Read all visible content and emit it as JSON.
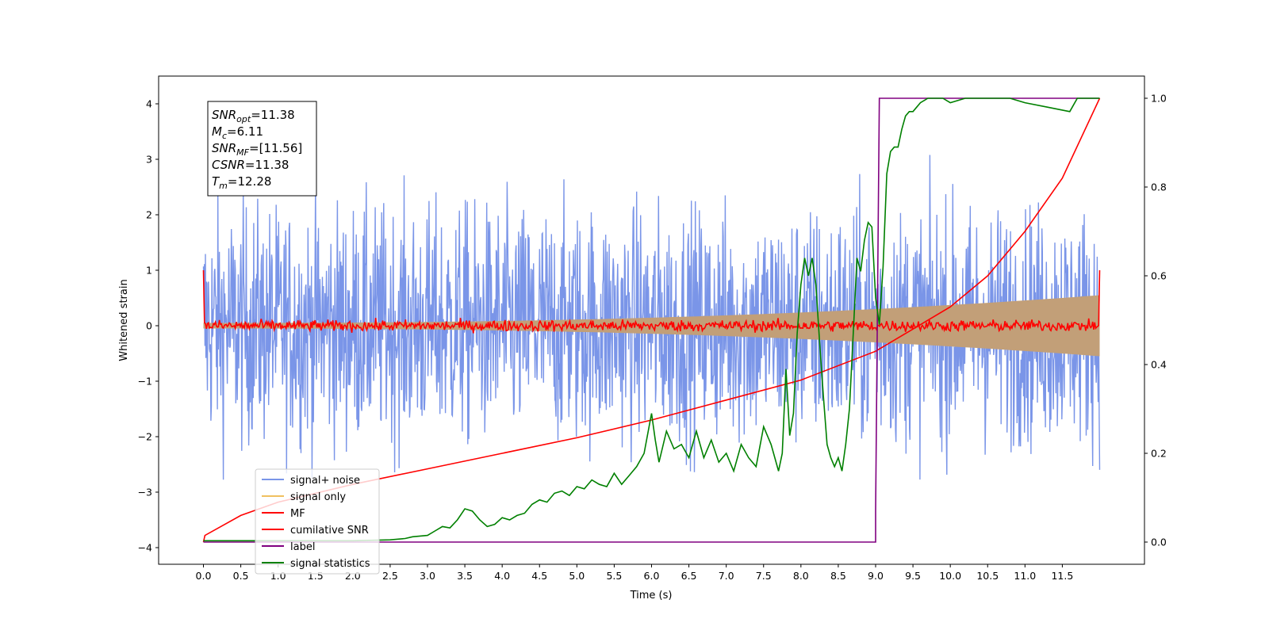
{
  "chart_data": {
    "type": "line",
    "title": "",
    "xlabel": "Time (s)",
    "ylabel": "Whitened strain",
    "xlim": [
      -0.6,
      12.6
    ],
    "ylim": [
      -4.3,
      4.5
    ],
    "y2lim": [
      -0.05,
      1.05
    ],
    "x_ticks": [
      "0.0",
      "0.5",
      "1.0",
      "1.5",
      "2.0",
      "2.5",
      "3.0",
      "3.5",
      "4.0",
      "4.5",
      "5.0",
      "5.5",
      "6.0",
      "6.5",
      "7.0",
      "7.5",
      "8.0",
      "8.5",
      "9.0",
      "9.5",
      "10.0",
      "10.5",
      "11.0",
      "11.5"
    ],
    "y_ticks": [
      "4",
      "3",
      "2",
      "1",
      "0",
      "−1",
      "−2",
      "−3",
      "−4"
    ],
    "y2_ticks": [
      "1.0",
      "0.8",
      "0.6",
      "0.4",
      "0.2",
      "0.0"
    ],
    "grid": false,
    "legend_position": "lower-left",
    "annotation": [
      {
        "main": "SNR",
        "sub": "opt",
        "value": "=11.38"
      },
      {
        "main": "M",
        "sub": "c",
        "value": "=6.11"
      },
      {
        "main": "SNR",
        "sub": "MF",
        "value": "=[11.56]"
      },
      {
        "main": "CSNR",
        "sub": "",
        "value": "=11.38"
      },
      {
        "main": "T",
        "sub": "m",
        "value": "=12.28"
      }
    ],
    "series": [
      {
        "name": "signal+ noise",
        "color": "#7a95e8",
        "axis": "left",
        "x_range": [
          0.0,
          12.0
        ],
        "y_range_approx": [
          -3.9,
          4.1
        ]
      },
      {
        "name": "signal only",
        "color": "#f0c060",
        "axis": "left",
        "x_range": [
          0.0,
          12.0
        ],
        "envelope_start": 0.05,
        "envelope_end": 0.55
      },
      {
        "name": "MF",
        "color": "#ff0000",
        "axis": "left",
        "x_range": [
          0.0,
          12.0
        ],
        "start_value": 1.0,
        "end_value": 1.0,
        "noise_level": 0.1
      },
      {
        "name": "cumilative SNR",
        "color": "#ff0000",
        "axis": "right",
        "x": [
          0.0,
          0.02,
          0.5,
          1.0,
          2.0,
          3.0,
          4.0,
          5.0,
          6.0,
          7.0,
          8.0,
          9.0,
          10.0,
          10.5,
          11.0,
          11.5,
          12.0
        ],
        "y": [
          0.0,
          0.015,
          0.06,
          0.09,
          0.13,
          0.165,
          0.2,
          0.235,
          0.275,
          0.32,
          0.365,
          0.43,
          0.53,
          0.6,
          0.7,
          0.82,
          1.0
        ]
      },
      {
        "name": "label",
        "color": "#800080",
        "axis": "right",
        "x": [
          0.0,
          9.0,
          9.0,
          9.05,
          12.0
        ],
        "y": [
          0.0,
          0.0,
          0.07,
          1.0,
          1.0
        ]
      },
      {
        "name": "signal statistics",
        "color": "#008000",
        "axis": "right",
        "x": [
          0.0,
          2.0,
          2.5,
          2.7,
          2.8,
          3.0,
          3.1,
          3.2,
          3.3,
          3.4,
          3.5,
          3.6,
          3.7,
          3.8,
          3.9,
          4.0,
          4.1,
          4.2,
          4.3,
          4.4,
          4.5,
          4.6,
          4.7,
          4.8,
          4.9,
          5.0,
          5.1,
          5.2,
          5.3,
          5.4,
          5.5,
          5.6,
          5.7,
          5.8,
          5.9,
          6.0,
          6.05,
          6.1,
          6.2,
          6.3,
          6.4,
          6.5,
          6.6,
          6.7,
          6.8,
          6.9,
          7.0,
          7.1,
          7.2,
          7.3,
          7.4,
          7.5,
          7.6,
          7.7,
          7.75,
          7.8,
          7.85,
          7.9,
          7.95,
          8.0,
          8.05,
          8.1,
          8.15,
          8.2,
          8.25,
          8.3,
          8.35,
          8.4,
          8.45,
          8.5,
          8.55,
          8.6,
          8.65,
          8.7,
          8.75,
          8.8,
          8.85,
          8.9,
          8.95,
          9.0,
          9.05,
          9.1,
          9.15,
          9.2,
          9.25,
          9.3,
          9.35,
          9.4,
          9.45,
          9.5,
          9.55,
          9.6,
          9.7,
          9.8,
          9.9,
          10.0,
          10.2,
          10.5,
          10.8,
          11.0,
          11.3,
          11.6,
          11.7,
          11.8,
          12.0
        ],
        "y": [
          0.003,
          0.003,
          0.005,
          0.008,
          0.012,
          0.015,
          0.025,
          0.035,
          0.032,
          0.05,
          0.075,
          0.07,
          0.05,
          0.035,
          0.04,
          0.055,
          0.05,
          0.06,
          0.065,
          0.085,
          0.095,
          0.09,
          0.11,
          0.115,
          0.105,
          0.125,
          0.12,
          0.14,
          0.13,
          0.125,
          0.155,
          0.13,
          0.15,
          0.17,
          0.2,
          0.29,
          0.23,
          0.18,
          0.25,
          0.21,
          0.22,
          0.19,
          0.25,
          0.19,
          0.23,
          0.18,
          0.2,
          0.16,
          0.22,
          0.19,
          0.17,
          0.26,
          0.22,
          0.16,
          0.2,
          0.39,
          0.24,
          0.29,
          0.47,
          0.58,
          0.64,
          0.6,
          0.64,
          0.58,
          0.45,
          0.33,
          0.22,
          0.19,
          0.17,
          0.19,
          0.16,
          0.22,
          0.3,
          0.47,
          0.64,
          0.61,
          0.68,
          0.72,
          0.71,
          0.55,
          0.49,
          0.62,
          0.83,
          0.88,
          0.89,
          0.89,
          0.93,
          0.96,
          0.97,
          0.97,
          0.98,
          0.99,
          1.0,
          1.0,
          1.0,
          0.99,
          1.0,
          1.0,
          1.0,
          0.99,
          0.98,
          0.97,
          1.0,
          1.0,
          1.0
        ]
      }
    ]
  }
}
